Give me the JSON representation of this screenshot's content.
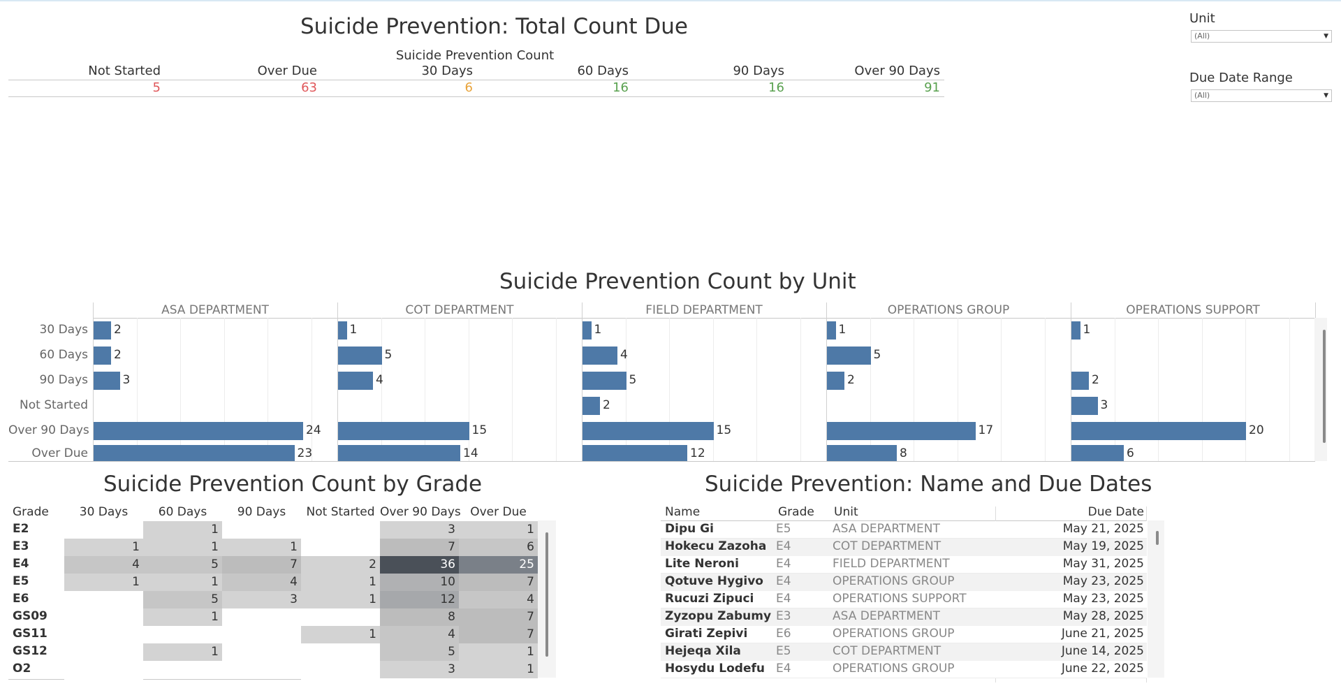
{
  "summary": {
    "title": "Suicide Prevention: Total Count Due",
    "subtitle": "Suicide Prevention Count",
    "columns": [
      "Not Started",
      "Over Due",
      "30 Days",
      "60 Days",
      "90 Days",
      "Over 90 Days"
    ],
    "values": [
      "5",
      "63",
      "6",
      "16",
      "16",
      "91"
    ],
    "colors": [
      "#e0585b",
      "#e0585b",
      "#e8a33a",
      "#59a14f",
      "#59a14f",
      "#59a14f"
    ]
  },
  "filters": {
    "unit_label": "Unit",
    "unit_value": "(All)",
    "date_label": "Due Date Range",
    "date_value": "(All)"
  },
  "chart_data": [
    {
      "type": "bar",
      "title": "Suicide Prevention Count by Unit",
      "orientation": "horizontal",
      "categories": [
        "30 Days",
        "60 Days",
        "90 Days",
        "Not Started",
        "Over 90 Days",
        "Over Due"
      ],
      "panels": [
        "ASA DEPARTMENT",
        "COT DEPARTMENT",
        "FIELD DEPARTMENT",
        "OPERATIONS GROUP",
        "OPERATIONS SUPPORT"
      ],
      "series": [
        {
          "name": "ASA DEPARTMENT",
          "values": [
            2,
            2,
            3,
            null,
            24,
            23
          ]
        },
        {
          "name": "COT DEPARTMENT",
          "values": [
            1,
            5,
            4,
            null,
            15,
            14
          ]
        },
        {
          "name": "FIELD DEPARTMENT",
          "values": [
            1,
            4,
            5,
            2,
            15,
            12
          ]
        },
        {
          "name": "OPERATIONS GROUP",
          "values": [
            1,
            5,
            2,
            null,
            17,
            8
          ]
        },
        {
          "name": "OPERATIONS SUPPORT",
          "values": [
            1,
            null,
            2,
            3,
            20,
            6
          ]
        }
      ],
      "color": "#4e79a7",
      "grid": true
    },
    {
      "type": "heatmap",
      "title": "Suicide Prevention Count by Grade",
      "row_header": "Grade",
      "columns": [
        "30 Days",
        "60 Days",
        "90 Days",
        "Not Started",
        "Over 90 Days",
        "Over Due"
      ],
      "rows": [
        "E2",
        "E3",
        "E4",
        "E5",
        "E6",
        "GS09",
        "GS11",
        "GS12",
        "O2"
      ],
      "values": [
        [
          null,
          1,
          null,
          null,
          3,
          1
        ],
        [
          1,
          1,
          1,
          null,
          7,
          6
        ],
        [
          4,
          5,
          7,
          2,
          36,
          25
        ],
        [
          1,
          1,
          4,
          1,
          10,
          7
        ],
        [
          null,
          5,
          3,
          1,
          12,
          4
        ],
        [
          null,
          1,
          null,
          null,
          8,
          7
        ],
        [
          null,
          null,
          null,
          1,
          4,
          7
        ],
        [
          null,
          1,
          null,
          null,
          5,
          1
        ],
        [
          null,
          null,
          null,
          null,
          3,
          1
        ]
      ]
    }
  ],
  "names_table": {
    "title": "Suicide Prevention: Name and Due Dates",
    "headers": [
      "Name",
      "Grade",
      "Unit",
      "Due Date"
    ],
    "rows": [
      [
        "Dipu Gi",
        "E5",
        "ASA DEPARTMENT",
        "May 21, 2025"
      ],
      [
        "Hokecu Zazoha",
        "E4",
        "COT DEPARTMENT",
        "May 19, 2025"
      ],
      [
        "Lite Neroni",
        "E4",
        "FIELD DEPARTMENT",
        "May 31, 2025"
      ],
      [
        "Qotuve Hygivo",
        "E4",
        "OPERATIONS GROUP",
        "May 23, 2025"
      ],
      [
        "Rucuzi Zipuci",
        "E4",
        "OPERATIONS SUPPORT",
        "May 23, 2025"
      ],
      [
        "Zyzopu Zabumy",
        "E3",
        "ASA DEPARTMENT",
        "May 28, 2025"
      ],
      [
        "Girati Zepivi",
        "E6",
        "OPERATIONS GROUP",
        "June 21, 2025"
      ],
      [
        "Hejeqa Xila",
        "E5",
        "COT DEPARTMENT",
        "June 14, 2025"
      ],
      [
        "Hosydu Lodefu",
        "E4",
        "OPERATIONS GROUP",
        "June 22, 2025"
      ]
    ]
  }
}
